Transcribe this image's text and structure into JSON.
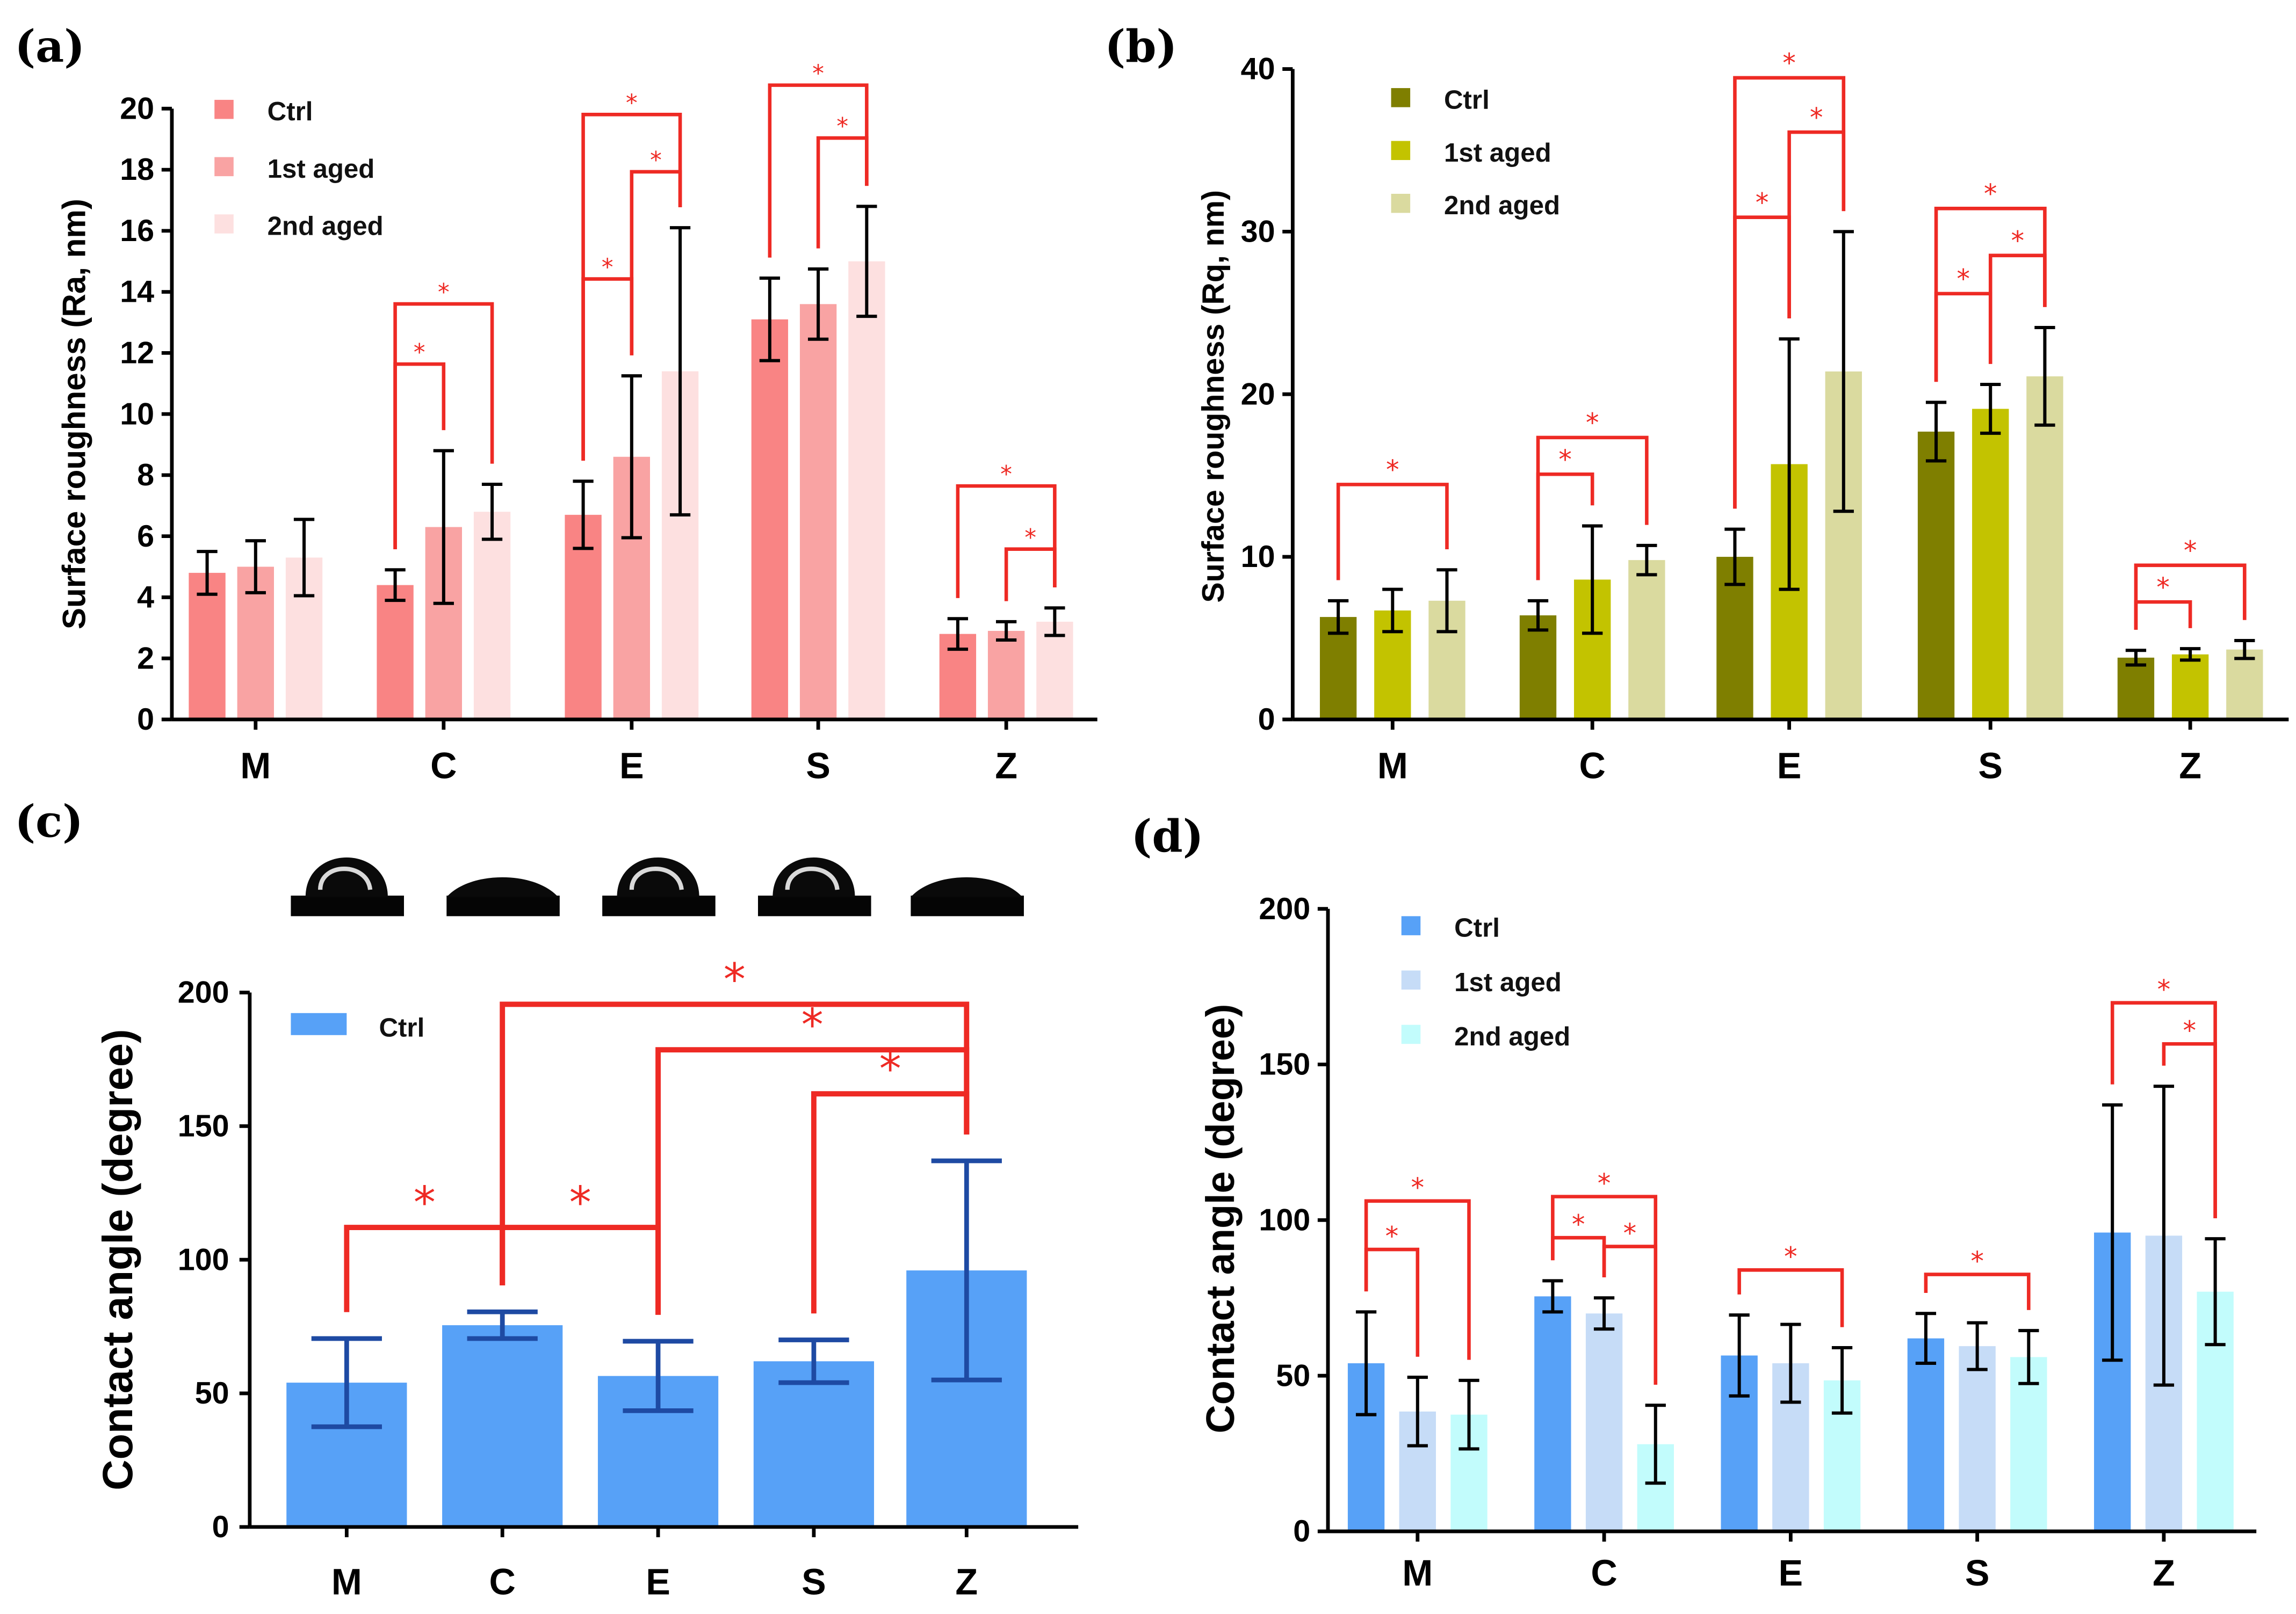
{
  "colors": {
    "a": [
      "#f98484",
      "#f9a3a3",
      "#fde0e0"
    ],
    "b": [
      "#7f7f00",
      "#c3c300",
      "#dada9f"
    ],
    "c": [
      "#57a1f7"
    ],
    "d": [
      "#57a1f7",
      "#c6dcf7",
      "#c2fcfc"
    ],
    "axis": "#000000",
    "bracket": "#ee2a24",
    "error_c": "#1e4aa3"
  },
  "chart_data": [
    {
      "panel": "(a)",
      "type": "bar",
      "ylabel": "Surface roughness (Ra, nm)",
      "ylim": [
        0,
        20
      ],
      "yticks": [
        "0",
        "2",
        "4",
        "6",
        "8",
        "10",
        "12",
        "14",
        "16",
        "18",
        "20"
      ],
      "categories": [
        "M",
        "C",
        "E",
        "S",
        "Z"
      ],
      "series": [
        {
          "name": "Ctrl",
          "values": [
            4.8,
            4.4,
            6.7,
            13.1,
            2.8
          ],
          "errors": [
            0.7,
            0.5,
            1.1,
            1.35,
            0.5
          ]
        },
        {
          "name": "1st aged",
          "values": [
            5.0,
            6.3,
            8.6,
            13.6,
            2.9
          ],
          "errors": [
            0.85,
            2.5,
            2.65,
            1.15,
            0.3
          ]
        },
        {
          "name": "2nd aged",
          "values": [
            5.3,
            6.8,
            11.4,
            15.0,
            3.2
          ],
          "errors": [
            1.25,
            0.9,
            4.7,
            1.8,
            0.45
          ]
        }
      ],
      "legend_position": "top-left",
      "significance": [
        {
          "category": "C",
          "from": 0,
          "to": 1,
          "label": "*"
        },
        {
          "category": "C",
          "from": 0,
          "to": 2,
          "label": "*"
        },
        {
          "category": "E",
          "from": 0,
          "to": 1,
          "label": "*"
        },
        {
          "category": "E",
          "from": 1,
          "to": 2,
          "label": "*"
        },
        {
          "category": "E",
          "from": 0,
          "to": 2,
          "label": "*"
        },
        {
          "category": "S",
          "from": 1,
          "to": 2,
          "label": "*"
        },
        {
          "category": "S",
          "from": 0,
          "to": 2,
          "label": "*"
        },
        {
          "category": "Z",
          "from": 1,
          "to": 2,
          "label": "*"
        },
        {
          "category": "Z",
          "from": 0,
          "to": 2,
          "label": "*"
        }
      ]
    },
    {
      "panel": "(b)",
      "type": "bar",
      "ylabel": "Surface  roughness (Rq, nm)",
      "ylim": [
        0,
        40
      ],
      "yticks": [
        "0",
        "10",
        "20",
        "30",
        "40"
      ],
      "categories": [
        "M",
        "C",
        "E",
        "S",
        "Z"
      ],
      "series": [
        {
          "name": "Ctrl",
          "values": [
            6.3,
            6.4,
            10.0,
            17.7,
            3.8
          ],
          "errors": [
            1.0,
            0.9,
            1.7,
            1.8,
            0.45
          ]
        },
        {
          "name": "1st aged",
          "values": [
            6.7,
            8.6,
            15.7,
            19.1,
            4.0
          ],
          "errors": [
            1.3,
            3.3,
            7.7,
            1.5,
            0.35
          ]
        },
        {
          "name": "2nd aged",
          "values": [
            7.3,
            9.8,
            21.4,
            21.1,
            4.3
          ],
          "errors": [
            1.9,
            0.9,
            8.6,
            3.0,
            0.55
          ]
        }
      ],
      "legend_position": "top-left",
      "significance": [
        {
          "category": "M",
          "from": 0,
          "to": 2,
          "label": "*"
        },
        {
          "category": "C",
          "from": 0,
          "to": 1,
          "label": "*"
        },
        {
          "category": "C",
          "from": 0,
          "to": 2,
          "label": "*"
        },
        {
          "category": "E",
          "from": 0,
          "to": 1,
          "label": "*"
        },
        {
          "category": "E",
          "from": 1,
          "to": 2,
          "label": "*"
        },
        {
          "category": "E",
          "from": 0,
          "to": 2,
          "label": "*"
        },
        {
          "category": "S",
          "from": 0,
          "to": 1,
          "label": "*"
        },
        {
          "category": "S",
          "from": 1,
          "to": 2,
          "label": "*"
        },
        {
          "category": "S",
          "from": 0,
          "to": 2,
          "label": "*"
        },
        {
          "category": "Z",
          "from": 0,
          "to": 1,
          "label": "*"
        },
        {
          "category": "Z",
          "from": 0,
          "to": 2,
          "label": "*"
        }
      ]
    },
    {
      "panel": "(c)",
      "type": "bar",
      "ylabel": "Contact angle (degree)",
      "ylim": [
        0,
        200
      ],
      "yticks": [
        "0",
        "50",
        "100",
        "150",
        "200"
      ],
      "categories": [
        "M",
        "C",
        "E",
        "S",
        "Z"
      ],
      "series": [
        {
          "name": "Ctrl",
          "values": [
            54,
            75.5,
            56.5,
            62,
            96
          ],
          "errors": [
            16.5,
            5,
            13,
            8,
            41
          ]
        }
      ],
      "legend_position": "top-left",
      "droplet_images": [
        "droplet-high",
        "droplet-flat",
        "droplet-high",
        "droplet-high",
        "droplet-flat"
      ],
      "significance": [
        {
          "from_category": "M",
          "to_category": "C",
          "label": "*"
        },
        {
          "from_category": "C",
          "to_category": "E",
          "label": "*"
        },
        {
          "from_category": "C",
          "to_category": "Z",
          "label": "*"
        },
        {
          "from_category": "E",
          "to_category": "Z",
          "label": "*"
        },
        {
          "from_category": "S",
          "to_category": "Z",
          "label": "*"
        }
      ]
    },
    {
      "panel": "(d)",
      "type": "bar",
      "ylabel": "Contact angle (degree)",
      "ylim": [
        0,
        200
      ],
      "yticks": [
        "0",
        "50",
        "100",
        "150",
        "200"
      ],
      "categories": [
        "M",
        "C",
        "E",
        "S",
        "Z"
      ],
      "series": [
        {
          "name": "Ctrl",
          "values": [
            54,
            75.5,
            56.5,
            62,
            96
          ],
          "errors": [
            16.5,
            5,
            13,
            8,
            41
          ]
        },
        {
          "name": "1st aged",
          "values": [
            38.5,
            70,
            54,
            59.5,
            95
          ],
          "errors": [
            11,
            5,
            12.5,
            7.5,
            48
          ]
        },
        {
          "name": "2nd aged",
          "values": [
            37.5,
            28,
            48.5,
            56,
            77
          ],
          "errors": [
            11,
            12.5,
            10.5,
            8.5,
            17
          ]
        }
      ],
      "legend_position": "top-left",
      "significance": [
        {
          "category": "M",
          "from": 0,
          "to": 1,
          "label": "*"
        },
        {
          "category": "M",
          "from": 0,
          "to": 2,
          "label": "*"
        },
        {
          "category": "C",
          "from": 0,
          "to": 1,
          "label": "*"
        },
        {
          "category": "C",
          "from": 1,
          "to": 2,
          "label": "*"
        },
        {
          "category": "C",
          "from": 0,
          "to": 2,
          "label": "*"
        },
        {
          "category": "E",
          "from": 0,
          "to": 2,
          "label": "*"
        },
        {
          "category": "S",
          "from": 0,
          "to": 2,
          "label": "*"
        },
        {
          "category": "Z",
          "from": 1,
          "to": 2,
          "label": "*"
        },
        {
          "category": "Z",
          "from": 0,
          "to": 2,
          "label": "*"
        }
      ]
    }
  ]
}
